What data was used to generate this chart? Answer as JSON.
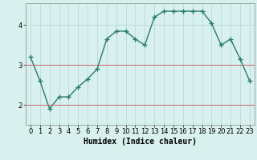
{
  "xlabel": "Humidex (Indice chaleur)",
  "x_values": [
    0,
    1,
    2,
    3,
    4,
    5,
    6,
    7,
    8,
    9,
    10,
    11,
    12,
    13,
    14,
    15,
    16,
    17,
    18,
    19,
    20,
    21,
    22,
    23
  ],
  "y_values": [
    3.2,
    2.6,
    1.9,
    2.2,
    2.2,
    2.45,
    2.65,
    2.9,
    3.65,
    3.85,
    3.85,
    3.65,
    3.5,
    4.2,
    4.35,
    4.35,
    4.35,
    4.35,
    4.35,
    4.05,
    3.5,
    3.65,
    3.15,
    2.6
  ],
  "line_color": "#2a7a6f",
  "marker": "+",
  "marker_size": 4,
  "background_color": "#d8f0ee",
  "grid_color": "#b8dcd8",
  "red_hline_color": "#cc6666",
  "ylim": [
    1.5,
    4.55
  ],
  "yticks": [
    2,
    3,
    4
  ],
  "red_hlines": [
    2,
    3
  ],
  "xlim": [
    -0.5,
    23.5
  ],
  "xlabel_fontsize": 7,
  "tick_fontsize": 6,
  "line_width": 1.0,
  "marker_edge_width": 1.0
}
